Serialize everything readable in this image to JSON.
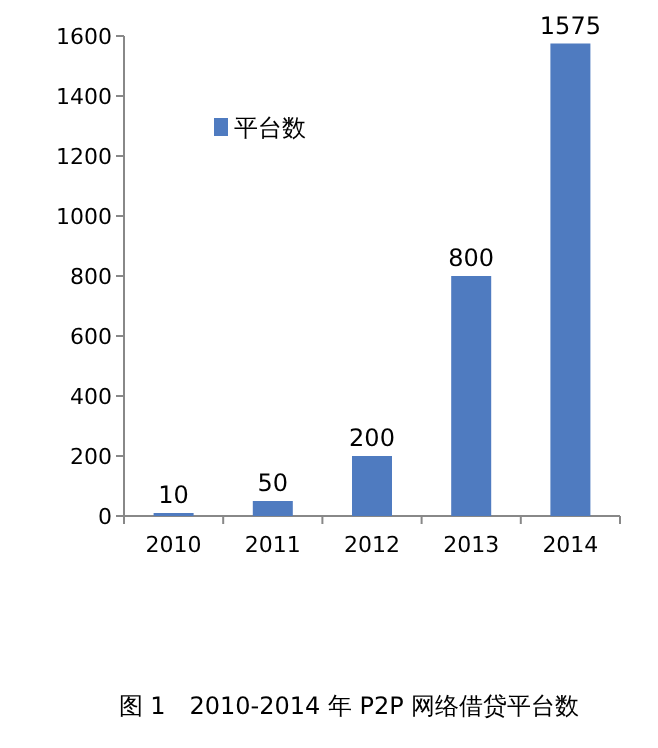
{
  "chart_data": {
    "type": "bar",
    "title": "图 1　2010-2014 年 P2P 网络借贷平台数",
    "categories": [
      "2010",
      "2011",
      "2012",
      "2013",
      "2014"
    ],
    "series": [
      {
        "name": "平台数",
        "color": "#4f7bc0",
        "values": [
          10,
          50,
          200,
          800,
          1575
        ]
      }
    ],
    "ylim": [
      0,
      1600
    ],
    "yticks": [
      0,
      200,
      400,
      600,
      800,
      1000,
      1200,
      1400,
      1600
    ],
    "data_labels": true,
    "legend": "top left",
    "grid": false
  }
}
